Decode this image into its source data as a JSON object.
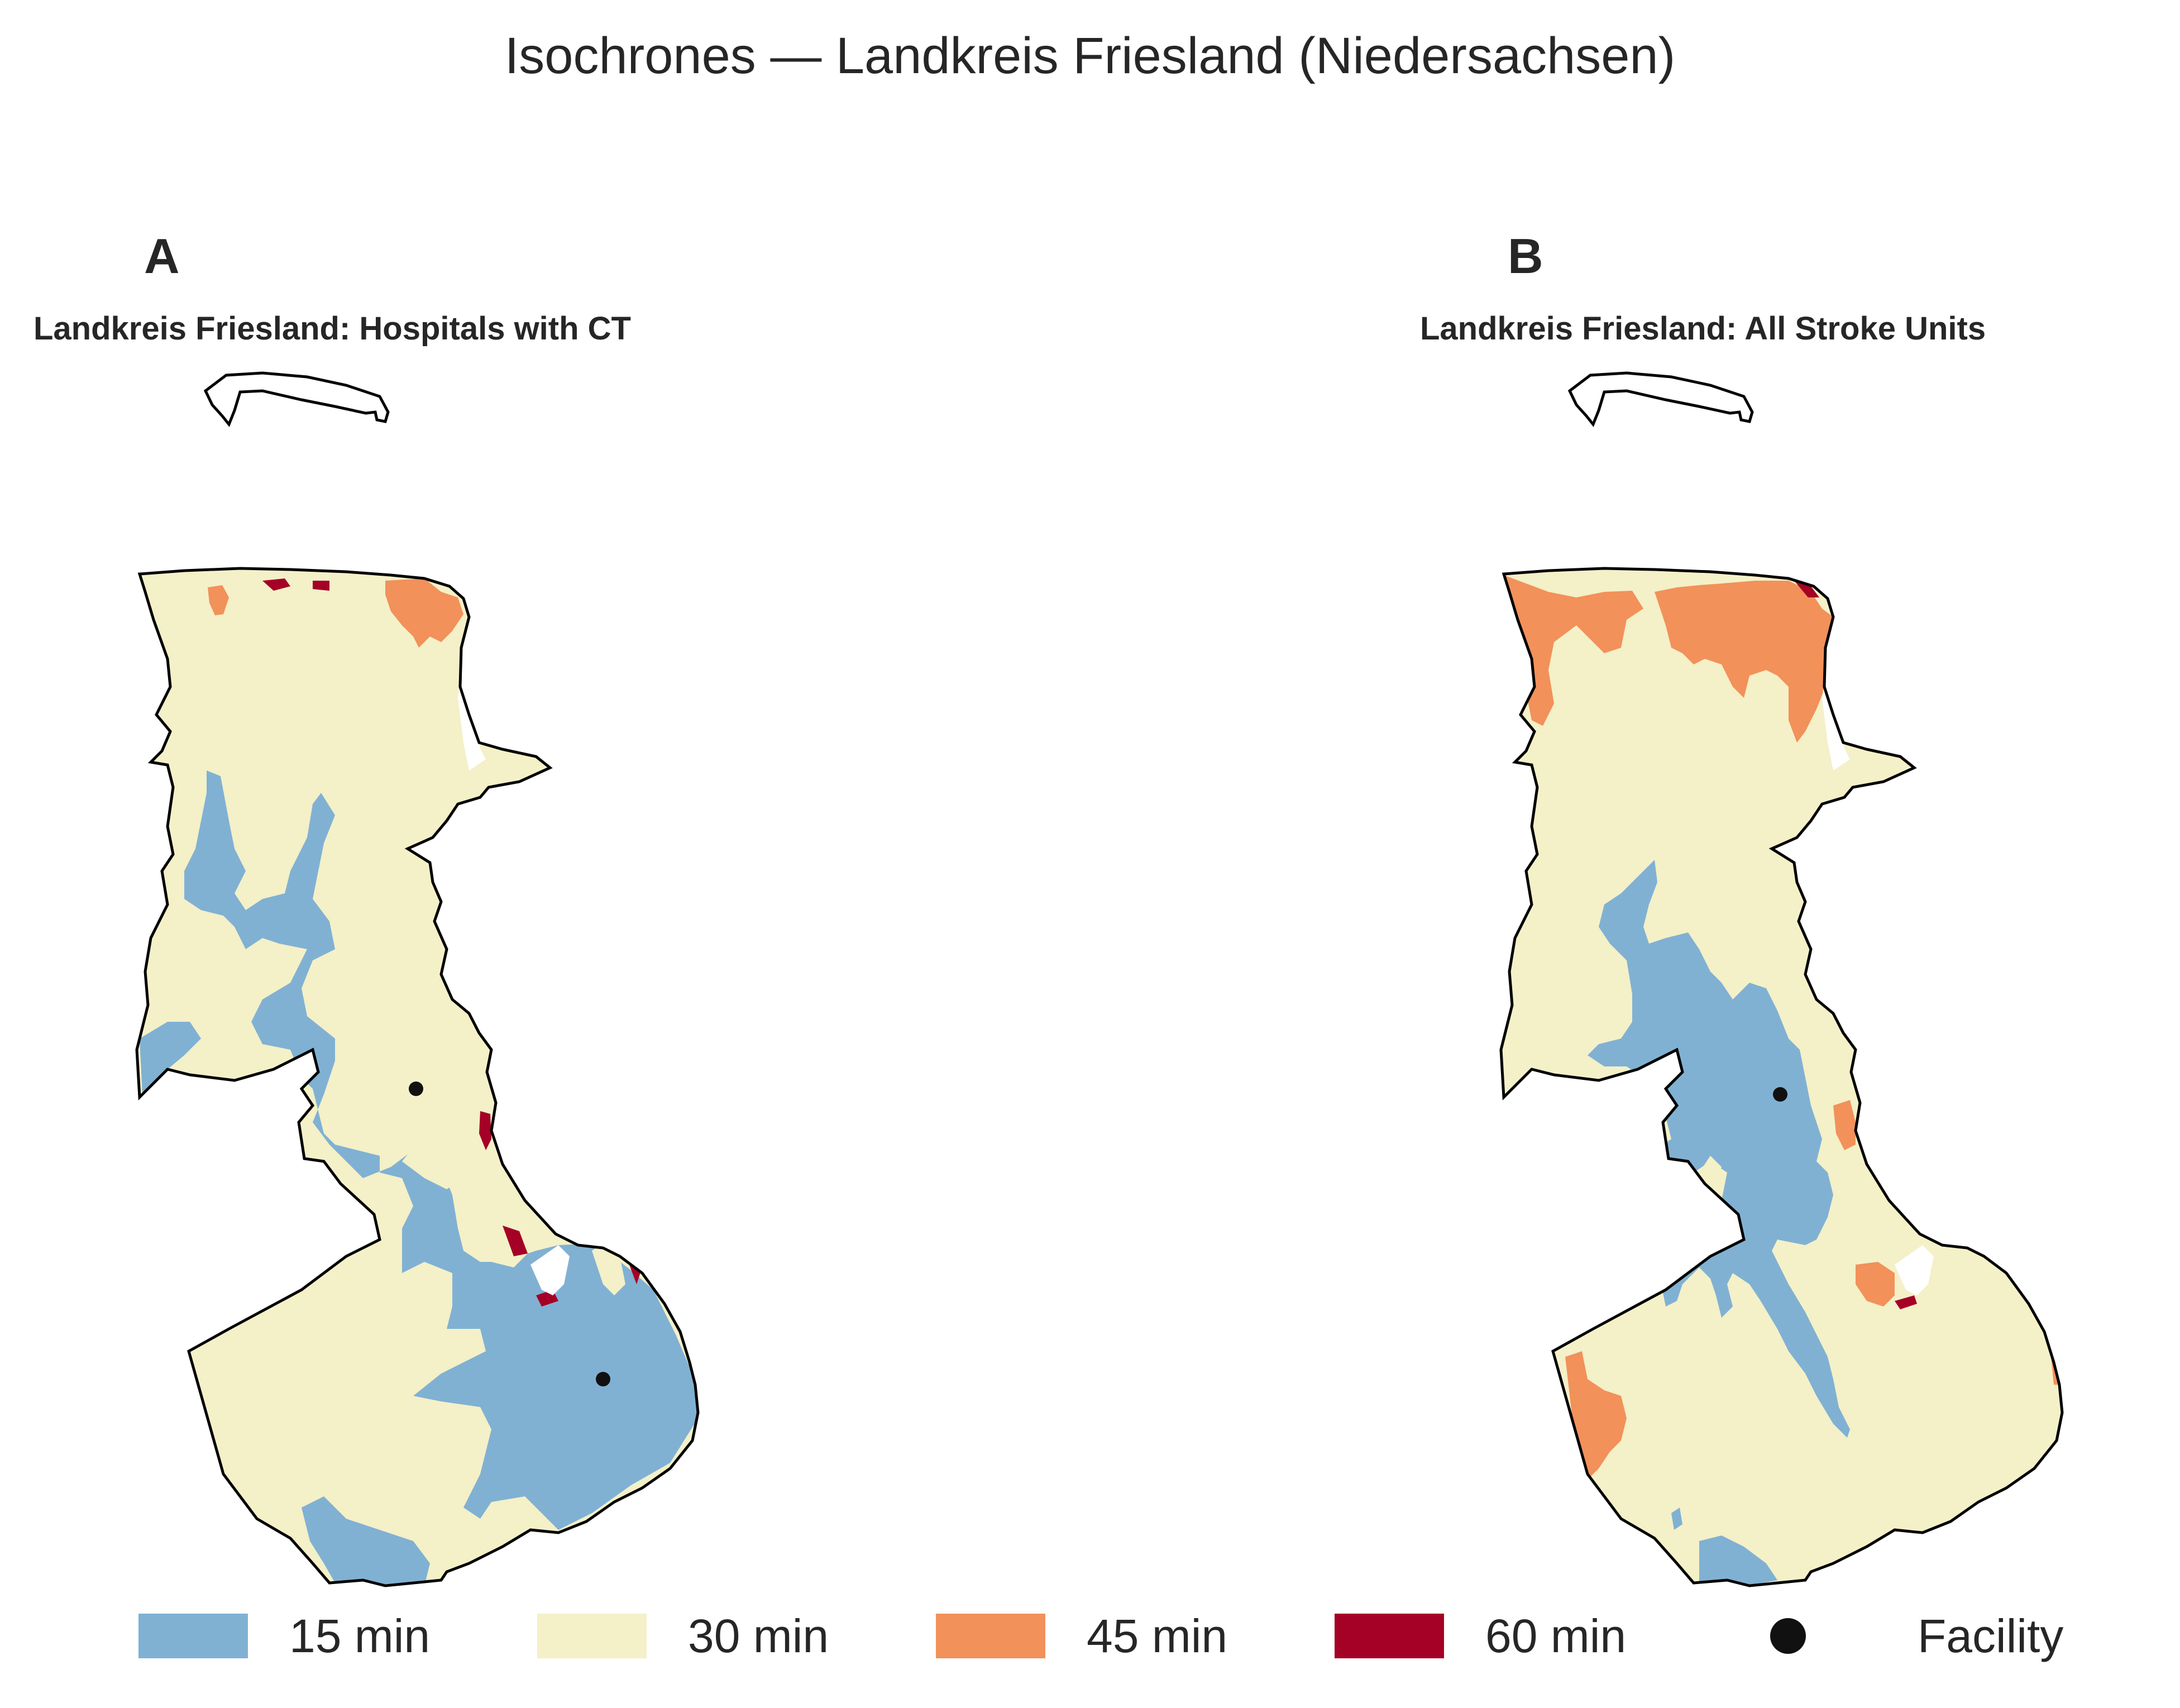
{
  "figure": {
    "title": "Isochrones — Landkreis Friesland (Niedersachsen)"
  },
  "panels": [
    {
      "letter": "A",
      "title": "Landkreis Friesland: Hospitals with CT",
      "facilities": 2
    },
    {
      "letter": "B",
      "title": "Landkreis Friesland: All Stroke Units",
      "facilities": 1
    }
  ],
  "legend": {
    "items": [
      {
        "label": "15 min",
        "color": "#80b1d3"
      },
      {
        "label": "30 min",
        "color": "#f4f0c8"
      },
      {
        "label": "45 min",
        "color": "#f2915a"
      },
      {
        "label": "60 min",
        "color": "#a50026"
      },
      {
        "label": "Facility",
        "color": "#111111"
      }
    ]
  },
  "colors": {
    "boundary": "#000000",
    "water": "#ffffff"
  }
}
